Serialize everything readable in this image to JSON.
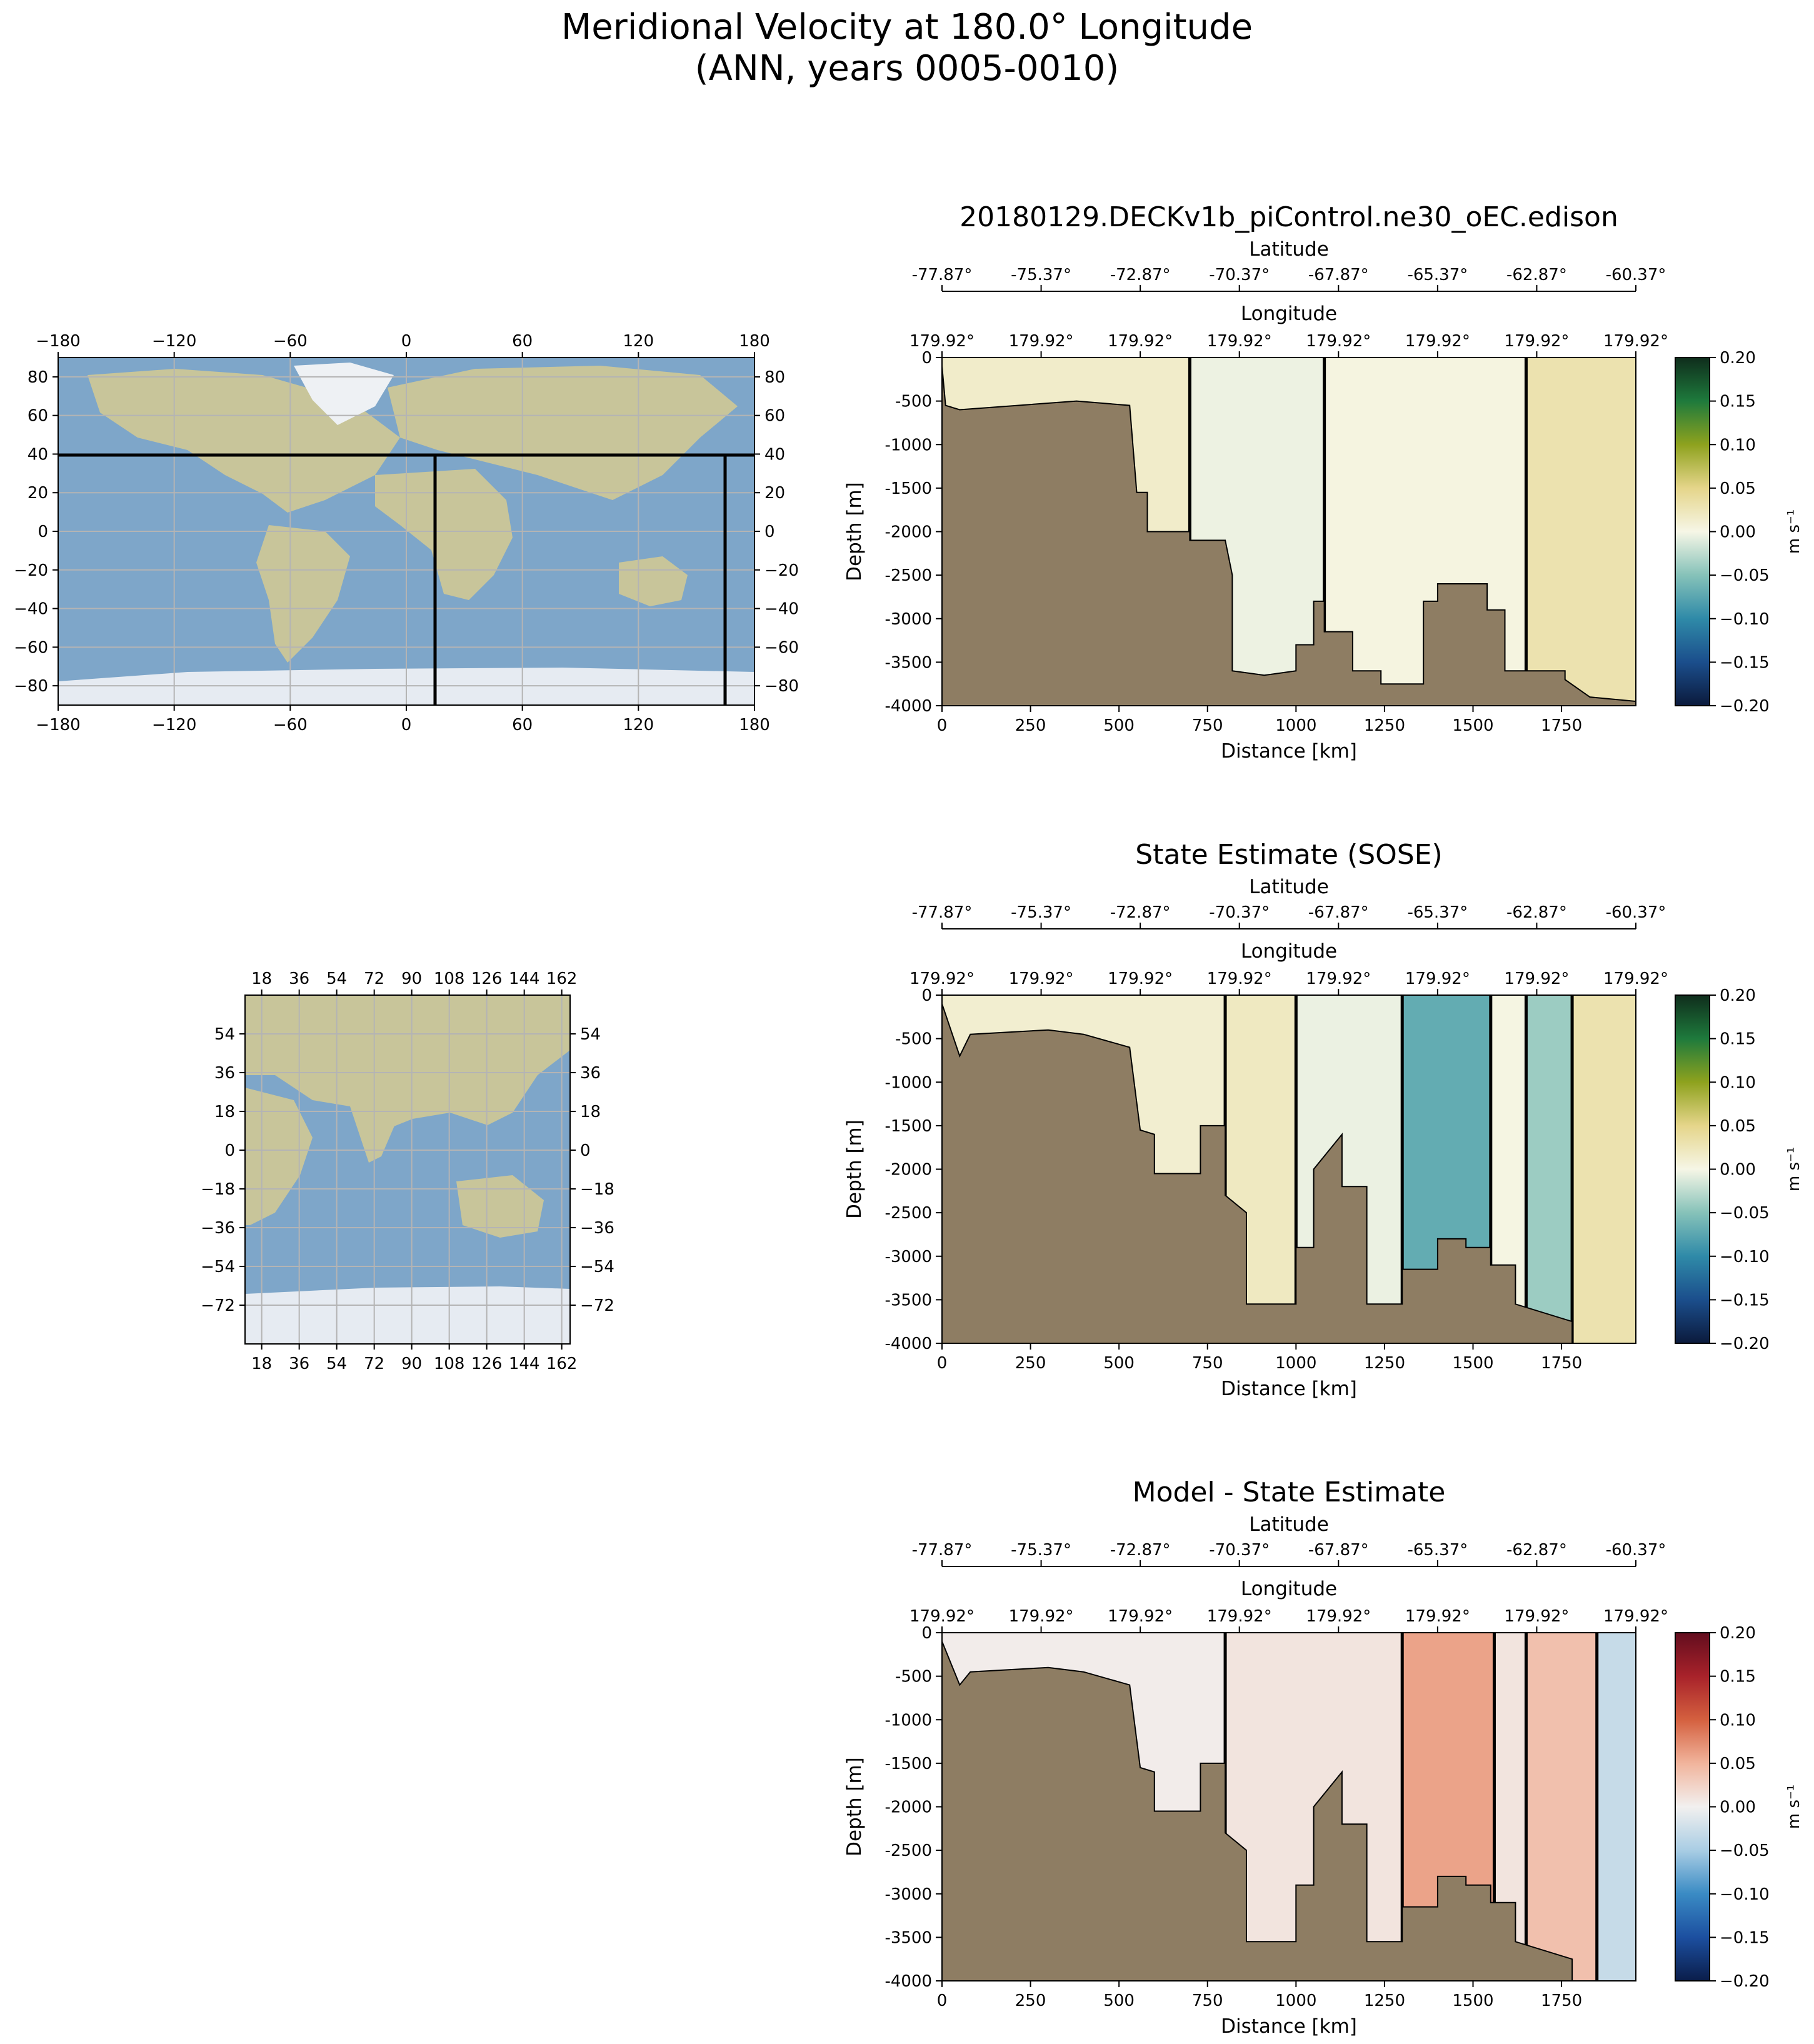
{
  "figure": {
    "title_line1": "Meridional Velocity at 180.0° Longitude",
    "title_line2": "(ANN, years 0005-0010)"
  },
  "colors": {
    "bathymetry": "#8e7d63",
    "ocean": "#7ea6c9",
    "land": "#c8c59a",
    "ice": "#e6ebf2"
  },
  "chart_data": [
    {
      "type": "heatmap",
      "id": "model",
      "title": "20180129.DECKv1b_piControl.ne30_oEC.edison",
      "xlabel": "Distance [km]",
      "ylabel": "Depth [m]",
      "xlim": [
        0,
        1960
      ],
      "ylim": [
        -4000,
        0
      ],
      "xticks": [
        0,
        250,
        500,
        750,
        1000,
        1250,
        1500,
        1750
      ],
      "yticks": [
        0,
        -500,
        -1000,
        -1500,
        -2000,
        -2500,
        -3000,
        -3500,
        -4000
      ],
      "top_axis1_label": "Latitude",
      "top_axis1_ticks": [
        "-77.87°",
        "-75.37°",
        "-72.87°",
        "-70.37°",
        "-67.87°",
        "-65.37°",
        "-62.87°",
        "-60.37°"
      ],
      "top_axis2_label": "Longitude",
      "top_axis2_ticks": [
        "179.92°",
        "179.92°",
        "179.92°",
        "179.92°",
        "179.92°",
        "179.92°",
        "179.92°",
        "179.92°"
      ],
      "colorbar": {
        "label": "m s⁻¹",
        "range": [
          -0.2,
          0.2
        ],
        "ticks": [
          "0.20",
          "0.15",
          "0.10",
          "0.05",
          "0.00",
          "−0.05",
          "−0.10",
          "−0.15",
          "−0.20"
        ],
        "colors": [
          "#0b1a3c",
          "#1b4e8c",
          "#2f8aa8",
          "#86c2b9",
          "#f6f6e6",
          "#e5d58a",
          "#8ea21e",
          "#1e7a3c",
          "#0f2d1c"
        ]
      },
      "bands": [
        {
          "x": [
            0,
            700
          ],
          "value": 0.015
        },
        {
          "x": [
            700,
            1080
          ],
          "value": -0.004
        },
        {
          "x": [
            1080,
            1650
          ],
          "value": 0.003
        },
        {
          "x": [
            1650,
            1960
          ],
          "value": 0.03
        }
      ],
      "bathymetry": [
        [
          0,
          -100
        ],
        [
          10,
          -550
        ],
        [
          50,
          -600
        ],
        [
          380,
          -500
        ],
        [
          530,
          -550
        ],
        [
          550,
          -1550
        ],
        [
          580,
          -1550
        ],
        [
          580,
          -2000
        ],
        [
          700,
          -2000
        ],
        [
          700,
          -2100
        ],
        [
          800,
          -2100
        ],
        [
          820,
          -2500
        ],
        [
          820,
          -3600
        ],
        [
          910,
          -3650
        ],
        [
          1000,
          -3600
        ],
        [
          1000,
          -3300
        ],
        [
          1050,
          -3300
        ],
        [
          1050,
          -2800
        ],
        [
          1080,
          -2800
        ],
        [
          1080,
          -3150
        ],
        [
          1160,
          -3150
        ],
        [
          1160,
          -3600
        ],
        [
          1240,
          -3600
        ],
        [
          1240,
          -3750
        ],
        [
          1360,
          -3750
        ],
        [
          1360,
          -2800
        ],
        [
          1400,
          -2800
        ],
        [
          1400,
          -2600
        ],
        [
          1540,
          -2600
        ],
        [
          1540,
          -2900
        ],
        [
          1590,
          -2900
        ],
        [
          1590,
          -3600
        ],
        [
          1760,
          -3600
        ],
        [
          1760,
          -3700
        ],
        [
          1830,
          -3900
        ],
        [
          1960,
          -3950
        ]
      ]
    },
    {
      "type": "heatmap",
      "id": "sose",
      "title": "State Estimate (SOSE)",
      "xlabel": "Distance [km]",
      "ylabel": "Depth [m]",
      "xlim": [
        0,
        1960
      ],
      "ylim": [
        -4000,
        0
      ],
      "xticks": [
        0,
        250,
        500,
        750,
        1000,
        1250,
        1500,
        1750
      ],
      "yticks": [
        0,
        -500,
        -1000,
        -1500,
        -2000,
        -2500,
        -3000,
        -3500,
        -4000
      ],
      "top_axis1_label": "Latitude",
      "top_axis1_ticks": [
        "-77.87°",
        "-75.37°",
        "-72.87°",
        "-70.37°",
        "-67.87°",
        "-65.37°",
        "-62.87°",
        "-60.37°"
      ],
      "top_axis2_label": "Longitude",
      "top_axis2_ticks": [
        "179.92°",
        "179.92°",
        "179.92°",
        "179.92°",
        "179.92°",
        "179.92°",
        "179.92°",
        "179.92°"
      ],
      "colorbar": {
        "label": "m s⁻¹",
        "range": [
          -0.2,
          0.2
        ],
        "ticks": [
          "0.20",
          "0.15",
          "0.10",
          "0.05",
          "0.00",
          "−0.05",
          "−0.10",
          "−0.15",
          "−0.20"
        ],
        "colors": [
          "#0b1a3c",
          "#1b4e8c",
          "#2f8aa8",
          "#86c2b9",
          "#f6f6e6",
          "#e5d58a",
          "#8ea21e",
          "#1e7a3c",
          "#0f2d1c"
        ]
      },
      "bands": [
        {
          "x": [
            0,
            800
          ],
          "value": 0.012
        },
        {
          "x": [
            800,
            1000
          ],
          "value": 0.02
        },
        {
          "x": [
            1000,
            1300
          ],
          "value": -0.005
        },
        {
          "x": [
            1300,
            1550
          ],
          "value": -0.07
        },
        {
          "x": [
            1550,
            1650
          ],
          "value": 0.002
        },
        {
          "x": [
            1650,
            1780
          ],
          "value": -0.04
        },
        {
          "x": [
            1780,
            1960
          ],
          "value": 0.03
        }
      ],
      "bathymetry": [
        [
          0,
          -100
        ],
        [
          50,
          -700
        ],
        [
          80,
          -450
        ],
        [
          300,
          -400
        ],
        [
          400,
          -450
        ],
        [
          530,
          -600
        ],
        [
          560,
          -1550
        ],
        [
          600,
          -1600
        ],
        [
          600,
          -2050
        ],
        [
          730,
          -2050
        ],
        [
          730,
          -1500
        ],
        [
          800,
          -1500
        ],
        [
          800,
          -2300
        ],
        [
          860,
          -2500
        ],
        [
          860,
          -3550
        ],
        [
          1000,
          -3550
        ],
        [
          1000,
          -2900
        ],
        [
          1050,
          -2900
        ],
        [
          1050,
          -2000
        ],
        [
          1130,
          -1600
        ],
        [
          1130,
          -2200
        ],
        [
          1200,
          -2200
        ],
        [
          1200,
          -3550
        ],
        [
          1300,
          -3550
        ],
        [
          1300,
          -3150
        ],
        [
          1400,
          -3150
        ],
        [
          1400,
          -2800
        ],
        [
          1480,
          -2800
        ],
        [
          1480,
          -2900
        ],
        [
          1550,
          -2900
        ],
        [
          1550,
          -3100
        ],
        [
          1620,
          -3100
        ],
        [
          1620,
          -3550
        ],
        [
          1780,
          -3750
        ],
        [
          1780,
          -4000
        ],
        [
          1960,
          -4000
        ]
      ]
    },
    {
      "type": "heatmap",
      "id": "difference",
      "title": "Model - State Estimate",
      "xlabel": "Distance [km]",
      "ylabel": "Depth [m]",
      "xlim": [
        0,
        1960
      ],
      "ylim": [
        -4000,
        0
      ],
      "xticks": [
        0,
        250,
        500,
        750,
        1000,
        1250,
        1500,
        1750
      ],
      "yticks": [
        0,
        -500,
        -1000,
        -1500,
        -2000,
        -2500,
        -3000,
        -3500,
        -4000
      ],
      "top_axis1_label": "Latitude",
      "top_axis1_ticks": [
        "-77.87°",
        "-75.37°",
        "-72.87°",
        "-70.37°",
        "-67.87°",
        "-65.37°",
        "-62.87°",
        "-60.37°"
      ],
      "top_axis2_label": "Longitude",
      "top_axis2_ticks": [
        "179.92°",
        "179.92°",
        "179.92°",
        "179.92°",
        "179.92°",
        "179.92°",
        "179.92°",
        "179.92°"
      ],
      "colorbar": {
        "label": "m s⁻¹",
        "range": [
          -0.2,
          0.2
        ],
        "ticks": [
          "0.20",
          "0.15",
          "0.10",
          "0.05",
          "0.00",
          "−0.05",
          "−0.10",
          "−0.15",
          "−0.20"
        ],
        "colors": [
          "#0a1d4a",
          "#1c4fa0",
          "#3a8bc4",
          "#a9cde4",
          "#f2f0ef",
          "#f1b49c",
          "#d4603f",
          "#a8222a",
          "#620d1e"
        ]
      },
      "bands": [
        {
          "x": [
            0,
            800
          ],
          "value": 0.003
        },
        {
          "x": [
            800,
            1300
          ],
          "value": 0.01
        },
        {
          "x": [
            1300,
            1560
          ],
          "value": 0.06
        },
        {
          "x": [
            1560,
            1650
          ],
          "value": 0.01
        },
        {
          "x": [
            1650,
            1850
          ],
          "value": 0.04
        },
        {
          "x": [
            1850,
            1960
          ],
          "value": -0.03
        }
      ],
      "bathymetry": [
        [
          0,
          -100
        ],
        [
          50,
          -600
        ],
        [
          80,
          -450
        ],
        [
          300,
          -400
        ],
        [
          400,
          -450
        ],
        [
          530,
          -600
        ],
        [
          560,
          -1550
        ],
        [
          600,
          -1600
        ],
        [
          600,
          -2050
        ],
        [
          730,
          -2050
        ],
        [
          730,
          -1500
        ],
        [
          800,
          -1500
        ],
        [
          800,
          -2300
        ],
        [
          860,
          -2500
        ],
        [
          860,
          -3550
        ],
        [
          1000,
          -3550
        ],
        [
          1000,
          -2900
        ],
        [
          1050,
          -2900
        ],
        [
          1050,
          -2000
        ],
        [
          1130,
          -1600
        ],
        [
          1130,
          -2200
        ],
        [
          1200,
          -2200
        ],
        [
          1200,
          -3550
        ],
        [
          1300,
          -3550
        ],
        [
          1300,
          -3150
        ],
        [
          1400,
          -3150
        ],
        [
          1400,
          -2800
        ],
        [
          1480,
          -2800
        ],
        [
          1480,
          -2900
        ],
        [
          1550,
          -2900
        ],
        [
          1550,
          -3100
        ],
        [
          1620,
          -3100
        ],
        [
          1620,
          -3550
        ],
        [
          1780,
          -3750
        ],
        [
          1780,
          -4000
        ],
        [
          1960,
          -4000
        ]
      ]
    }
  ],
  "maps": [
    {
      "id": "map-global",
      "lon_range": [
        -180,
        180
      ],
      "lat_range": [
        -90,
        90
      ],
      "bottom_ticks": [
        "−180",
        "−120",
        "−60",
        "0",
        "60",
        "120",
        "180"
      ],
      "top_ticks": [
        "−180",
        "−120",
        "−60",
        "0",
        "60",
        "120",
        "180"
      ],
      "left_ticks": [
        "80",
        "60",
        "40",
        "20",
        "0",
        "−20",
        "−40",
        "−60",
        "−80"
      ],
      "right_ticks": [
        "80",
        "60",
        "40",
        "20",
        "0",
        "−20",
        "−40",
        "−60",
        "−80"
      ]
    },
    {
      "id": "map-regional",
      "lon_range": [
        10,
        166
      ],
      "lat_range": [
        -90,
        72
      ],
      "bottom_ticks": [
        "18",
        "36",
        "54",
        "72",
        "90",
        "108",
        "126",
        "144",
        "162"
      ],
      "top_ticks": [
        "18",
        "36",
        "54",
        "72",
        "90",
        "108",
        "126",
        "144",
        "162"
      ],
      "left_ticks": [
        "54",
        "36",
        "18",
        "0",
        "−18",
        "−36",
        "−54",
        "−72"
      ],
      "right_ticks": [
        "54",
        "36",
        "18",
        "0",
        "−18",
        "−36",
        "−54",
        "−72"
      ]
    }
  ]
}
